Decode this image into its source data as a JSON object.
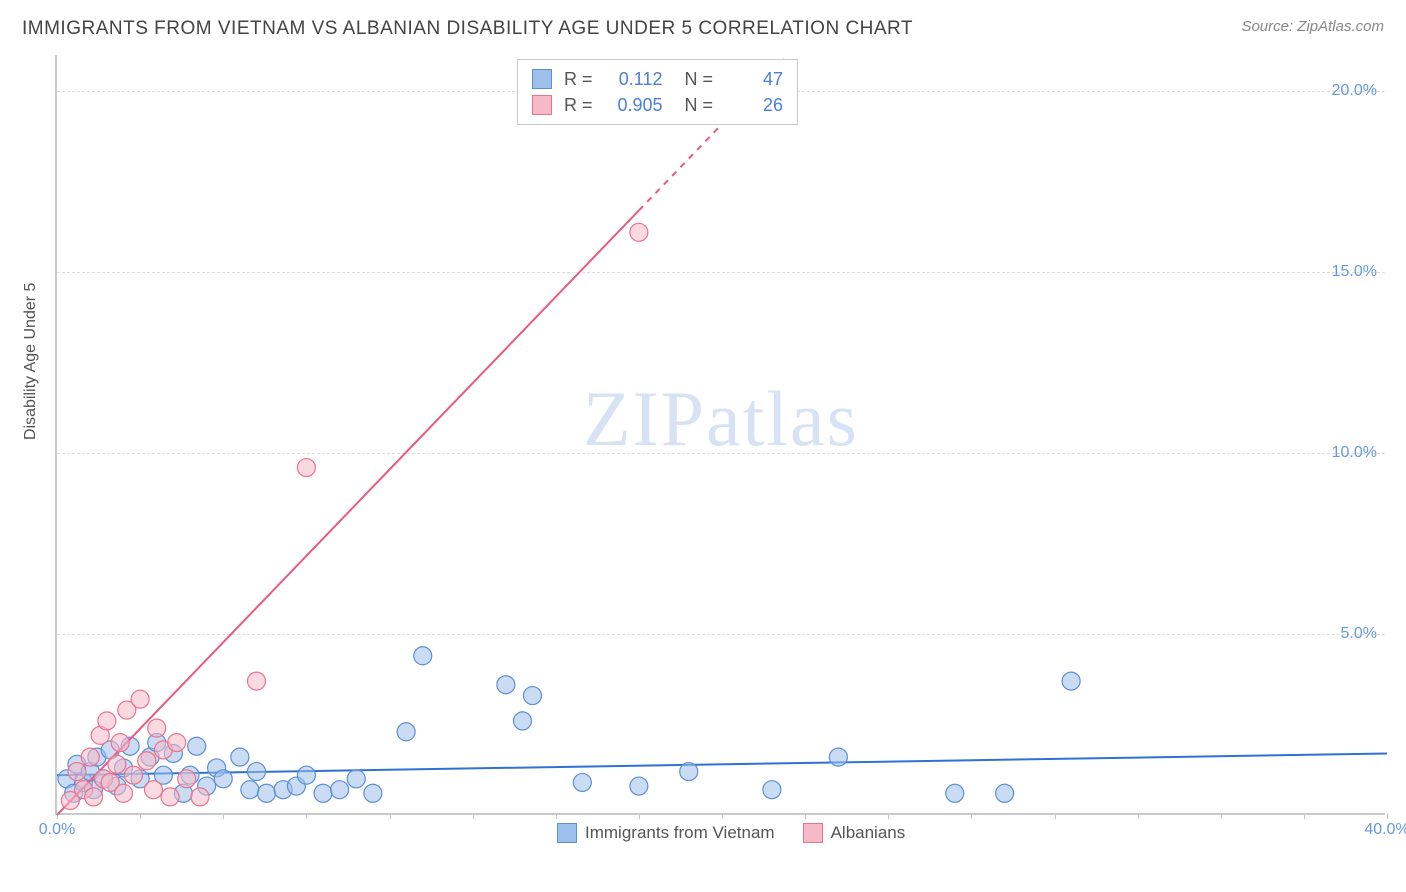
{
  "header": {
    "title": "IMMIGRANTS FROM VIETNAM VS ALBANIAN DISABILITY AGE UNDER 5 CORRELATION CHART",
    "source": "Source: ZipAtlas.com"
  },
  "chart": {
    "type": "scatter",
    "ylabel": "Disability Age Under 5",
    "watermark": "ZIPatlas",
    "xlim": [
      0,
      40
    ],
    "ylim": [
      0,
      21
    ],
    "xticks": [
      0,
      2.5,
      5,
      7.5,
      10,
      12.5,
      15,
      17.5,
      20,
      22.5,
      25,
      27.5,
      30,
      32.5,
      35,
      37.5,
      40
    ],
    "xticklabels": {
      "0": "0.0%",
      "40": "40.0%"
    },
    "yticks": [
      5,
      10,
      15,
      20
    ],
    "yticklabels": {
      "5": "5.0%",
      "10": "10.0%",
      "15": "15.0%",
      "20": "20.0%"
    },
    "background_color": "#ffffff",
    "grid_color": "#dddddd",
    "axis_color": "#c9c9c9",
    "tick_label_color": "#6698e0",
    "series": [
      {
        "name": "Immigrants from Vietnam",
        "color_fill": "#9cc0eb",
        "color_stroke": "#5b8fd6",
        "fill_opacity": 0.55,
        "marker_radius": 9,
        "R": "0.112",
        "N": "47",
        "trend": {
          "x1": 0,
          "y1": 1.1,
          "x2": 40,
          "y2": 1.7,
          "color": "#2f72d4",
          "width": 2
        },
        "points": [
          [
            0.3,
            1.0
          ],
          [
            0.5,
            0.6
          ],
          [
            0.6,
            1.4
          ],
          [
            0.8,
            0.9
          ],
          [
            1.0,
            1.2
          ],
          [
            1.1,
            0.7
          ],
          [
            1.2,
            1.6
          ],
          [
            1.4,
            1.0
          ],
          [
            1.6,
            1.8
          ],
          [
            1.8,
            0.8
          ],
          [
            2.0,
            1.3
          ],
          [
            2.2,
            1.9
          ],
          [
            2.5,
            1.0
          ],
          [
            2.8,
            1.6
          ],
          [
            3.0,
            2.0
          ],
          [
            3.2,
            1.1
          ],
          [
            3.5,
            1.7
          ],
          [
            3.8,
            0.6
          ],
          [
            4.0,
            1.1
          ],
          [
            4.2,
            1.9
          ],
          [
            4.5,
            0.8
          ],
          [
            4.8,
            1.3
          ],
          [
            5.0,
            1.0
          ],
          [
            5.5,
            1.6
          ],
          [
            5.8,
            0.7
          ],
          [
            6.0,
            1.2
          ],
          [
            6.3,
            0.6
          ],
          [
            6.8,
            0.7
          ],
          [
            7.2,
            0.8
          ],
          [
            7.5,
            1.1
          ],
          [
            8.0,
            0.6
          ],
          [
            8.5,
            0.7
          ],
          [
            9.0,
            1.0
          ],
          [
            9.5,
            0.6
          ],
          [
            10.5,
            2.3
          ],
          [
            11.0,
            4.4
          ],
          [
            13.5,
            3.6
          ],
          [
            14.0,
            2.6
          ],
          [
            14.3,
            3.3
          ],
          [
            15.8,
            0.9
          ],
          [
            17.5,
            0.8
          ],
          [
            19.0,
            1.2
          ],
          [
            21.5,
            0.7
          ],
          [
            23.5,
            1.6
          ],
          [
            27.0,
            0.6
          ],
          [
            28.5,
            0.6
          ],
          [
            30.5,
            3.7
          ]
        ]
      },
      {
        "name": "Albanians",
        "color_fill": "#f6b9c8",
        "color_stroke": "#ea738d",
        "fill_opacity": 0.55,
        "marker_radius": 9,
        "R": "0.905",
        "N": "26",
        "trend": {
          "x1": 0,
          "y1": 0.0,
          "x2": 22,
          "y2": 21.0,
          "color": "#ea5a7e",
          "width": 2,
          "dash_after_x": 17.5
        },
        "points": [
          [
            0.4,
            0.4
          ],
          [
            0.6,
            1.2
          ],
          [
            0.8,
            0.7
          ],
          [
            1.0,
            1.6
          ],
          [
            1.1,
            0.5
          ],
          [
            1.3,
            2.2
          ],
          [
            1.4,
            1.0
          ],
          [
            1.5,
            2.6
          ],
          [
            1.6,
            0.9
          ],
          [
            1.8,
            1.4
          ],
          [
            1.9,
            2.0
          ],
          [
            2.0,
            0.6
          ],
          [
            2.1,
            2.9
          ],
          [
            2.3,
            1.1
          ],
          [
            2.5,
            3.2
          ],
          [
            2.7,
            1.5
          ],
          [
            2.9,
            0.7
          ],
          [
            3.0,
            2.4
          ],
          [
            3.2,
            1.8
          ],
          [
            3.4,
            0.5
          ],
          [
            3.6,
            2.0
          ],
          [
            3.9,
            1.0
          ],
          [
            4.3,
            0.5
          ],
          [
            6.0,
            3.7
          ],
          [
            7.5,
            9.6
          ],
          [
            17.5,
            16.1
          ]
        ]
      }
    ],
    "legend_bottom": [
      {
        "label": "Immigrants from Vietnam",
        "swatch_fill": "#9cc0eb",
        "swatch_stroke": "#5b8fd6"
      },
      {
        "label": "Albanians",
        "swatch_fill": "#f6b9c8",
        "swatch_stroke": "#ea738d"
      }
    ]
  }
}
